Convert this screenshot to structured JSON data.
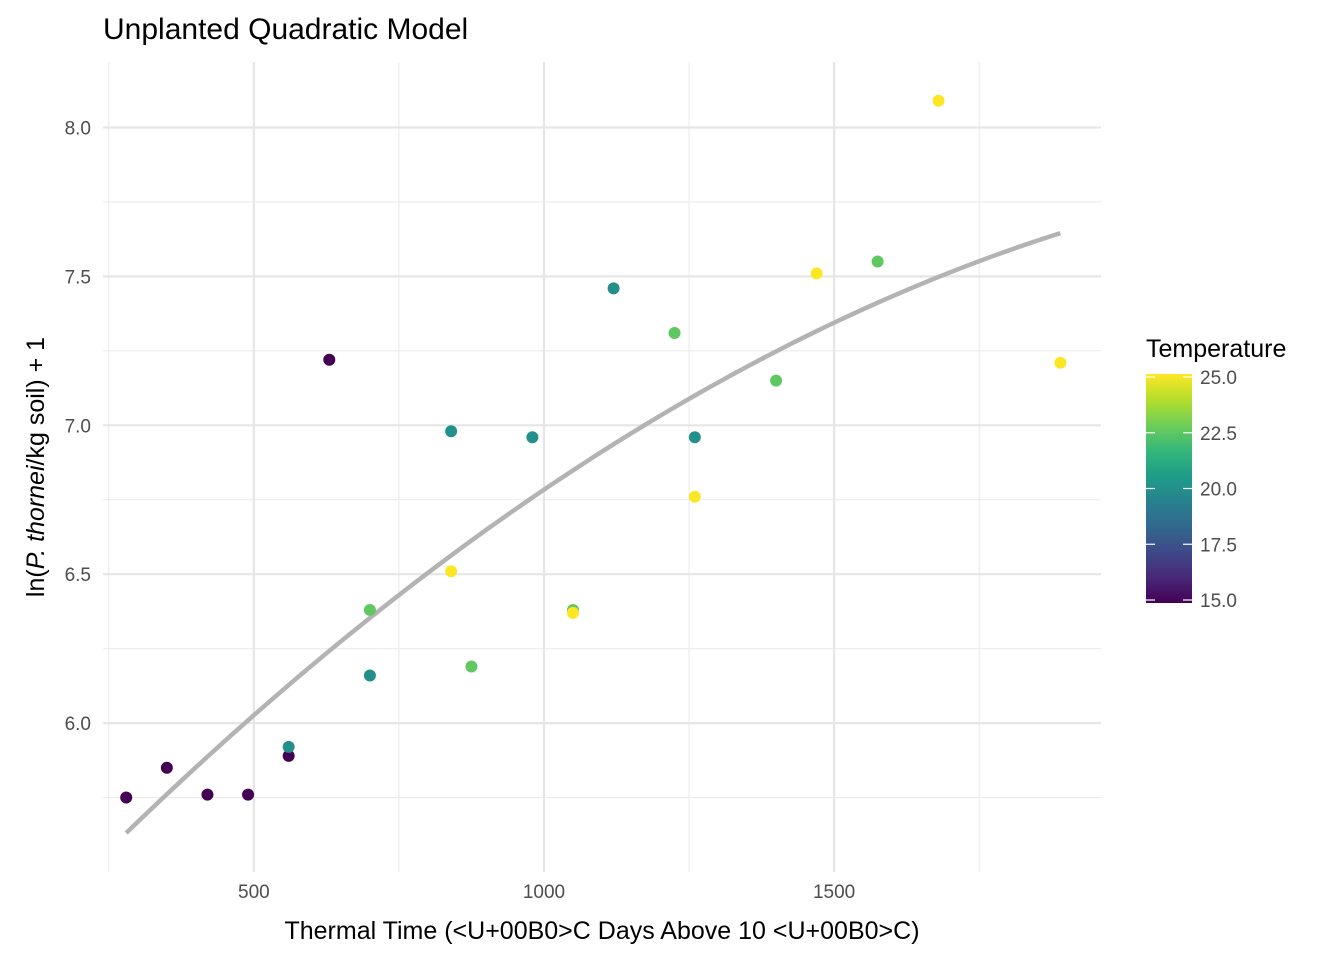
{
  "chart_data": {
    "type": "scatter",
    "title": "Unplanted Quadratic Model",
    "xlabel": "Thermal Time (<U+00B0>C Days Above 10 <U+00B0>C)",
    "ylabel": {
      "prefix": "ln(",
      "italic": "P. thornei",
      "suffix": "/kg soil) + 1"
    },
    "xlim": [
      240,
      1960
    ],
    "ylim": [
      5.5,
      8.22
    ],
    "x_ticks": [
      500,
      1000,
      1500
    ],
    "x_tick_labels": [
      "500",
      "1000",
      "1500"
    ],
    "y_ticks": [
      6.0,
      6.5,
      7.0,
      7.5,
      8.0
    ],
    "y_tick_labels": [
      "6.0",
      "6.5",
      "7.0",
      "7.5",
      "8.0"
    ],
    "grid": true,
    "legend": {
      "title": "Temperature",
      "position": "right",
      "range": [
        15.0,
        25.0
      ],
      "ticks": [
        15.0,
        17.5,
        20.0,
        22.5,
        25.0
      ],
      "tick_labels": [
        "15.0",
        "17.5",
        "20.0",
        "22.5",
        "25.0"
      ],
      "colors": [
        "#440154",
        "#482878",
        "#3e4989",
        "#31688e",
        "#26828e",
        "#1f9e89",
        "#35b779",
        "#6ece58",
        "#b5de2b",
        "#fde725"
      ]
    },
    "points": [
      {
        "x": 280,
        "y": 5.75,
        "temp": 15
      },
      {
        "x": 350,
        "y": 5.85,
        "temp": 15
      },
      {
        "x": 420,
        "y": 5.76,
        "temp": 15
      },
      {
        "x": 490,
        "y": 5.76,
        "temp": 15
      },
      {
        "x": 560,
        "y": 5.89,
        "temp": 15
      },
      {
        "x": 630,
        "y": 7.22,
        "temp": 15
      },
      {
        "x": 560,
        "y": 5.92,
        "temp": 20
      },
      {
        "x": 700,
        "y": 6.16,
        "temp": 20
      },
      {
        "x": 840,
        "y": 6.98,
        "temp": 20
      },
      {
        "x": 980,
        "y": 6.96,
        "temp": 20
      },
      {
        "x": 1120,
        "y": 7.46,
        "temp": 20
      },
      {
        "x": 1260,
        "y": 6.96,
        "temp": 20
      },
      {
        "x": 700,
        "y": 6.38,
        "temp": 22.5
      },
      {
        "x": 875,
        "y": 6.19,
        "temp": 22.5
      },
      {
        "x": 1050,
        "y": 6.38,
        "temp": 22.5
      },
      {
        "x": 1225,
        "y": 7.31,
        "temp": 22.5
      },
      {
        "x": 1400,
        "y": 7.15,
        "temp": 22.5
      },
      {
        "x": 1575,
        "y": 7.55,
        "temp": 22.5
      },
      {
        "x": 840,
        "y": 6.51,
        "temp": 25
      },
      {
        "x": 1050,
        "y": 6.37,
        "temp": 25
      },
      {
        "x": 1260,
        "y": 6.76,
        "temp": 25
      },
      {
        "x": 1470,
        "y": 7.51,
        "temp": 25
      },
      {
        "x": 1680,
        "y": 8.09,
        "temp": 25
      },
      {
        "x": 1890,
        "y": 7.21,
        "temp": 25
      }
    ],
    "fit_line": {
      "type": "quadratic",
      "color": "#b3b3b3",
      "x_range": [
        280,
        1890
      ],
      "x": [
        280,
        560,
        840,
        1120,
        1400,
        1680,
        1890
      ],
      "y": [
        5.63,
        6.13,
        6.56,
        6.94,
        7.25,
        7.49,
        7.65
      ]
    },
    "point_size": 6
  }
}
